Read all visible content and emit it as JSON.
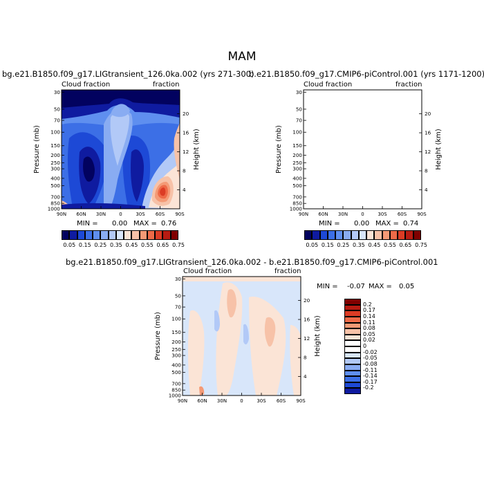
{
  "figure": {
    "title": "MAM"
  },
  "chart_data": [
    {
      "type": "heatmap",
      "name": "case",
      "title": "bg.e21.B1850.f09_g17.LIGtransient_126.0ka.002 (yrs 271-300)",
      "left_label": "Cloud fraction",
      "right_label": "fraction",
      "xlabel": "",
      "ylabel": "Pressure (mb)",
      "ylabel_right": "Height (km)",
      "x_ticks": [
        "90N",
        "60N",
        "30N",
        "0",
        "30S",
        "60S",
        "90S"
      ],
      "y_ticks": [
        "1000",
        "850",
        "700",
        "500",
        "400",
        "300",
        "250",
        "200",
        "150",
        "100",
        "70",
        "50",
        "30"
      ],
      "y_ticks_right": [
        "4",
        "8",
        "12",
        "16",
        "20"
      ],
      "min_label": "MIN =",
      "min_value": "0.00",
      "max_label": "MAX =",
      "max_value": "0.76",
      "colorbar_labels": [
        "0.05",
        "0.15",
        "0.25",
        "0.35",
        "0.45",
        "0.55",
        "0.65",
        "0.75"
      ],
      "colorbar_colors": [
        "#02025f",
        "#0f1ba0",
        "#1d49d6",
        "#3c6fe6",
        "#5f8fef",
        "#89acf2",
        "#b2c9f7",
        "#d8e6fa",
        "#fbe4d6",
        "#f7c2a8",
        "#f49a76",
        "#ee6a48",
        "#dc3c25",
        "#b71b12",
        "#800000"
      ]
    },
    {
      "type": "heatmap",
      "name": "control",
      "title": "b.e21.B1850.f09_g17.CMIP6-piControl.001 (yrs 1171-1200)",
      "left_label": "Cloud fraction",
      "right_label": "fraction",
      "xlabel": "",
      "ylabel": "Pressure (mb)",
      "ylabel_right": "Height (km)",
      "x_ticks": [
        "90N",
        "60N",
        "30N",
        "0",
        "30S",
        "60S",
        "90S"
      ],
      "y_ticks": [
        "1000",
        "850",
        "700",
        "500",
        "400",
        "300",
        "250",
        "200",
        "150",
        "100",
        "70",
        "50",
        "30"
      ],
      "y_ticks_right": [
        "4",
        "8",
        "12",
        "16",
        "20"
      ],
      "min_label": "MIN =",
      "min_value": "0.00",
      "max_label": "MAX =",
      "max_value": "0.74",
      "colorbar_labels": [
        "0.05",
        "0.15",
        "0.25",
        "0.35",
        "0.45",
        "0.55",
        "0.65",
        "0.75"
      ],
      "colorbar_colors": [
        "#02025f",
        "#0f1ba0",
        "#1d49d6",
        "#3c6fe6",
        "#5f8fef",
        "#89acf2",
        "#b2c9f7",
        "#d8e6fa",
        "#fbe4d6",
        "#f7c2a8",
        "#f49a76",
        "#ee6a48",
        "#dc3c25",
        "#b71b12",
        "#800000"
      ]
    },
    {
      "type": "heatmap",
      "name": "difference",
      "title": "bg.e21.B1850.f09_g17.LIGtransient_126.0ka.002 - b.e21.B1850.f09_g17.CMIP6-piControl.001",
      "left_label": "Cloud fraction",
      "right_label": "fraction",
      "xlabel": "",
      "ylabel": "Pressure (mb)",
      "ylabel_right": "Height (km)",
      "x_ticks": [
        "90N",
        "60N",
        "30N",
        "0",
        "30S",
        "60S",
        "90S"
      ],
      "y_ticks": [
        "1000",
        "850",
        "700",
        "500",
        "400",
        "300",
        "250",
        "200",
        "150",
        "100",
        "70",
        "50",
        "30"
      ],
      "y_ticks_right": [
        "4",
        "8",
        "12",
        "16",
        "20"
      ],
      "min_label": "MIN =",
      "min_value": "-0.07",
      "max_label": "MAX =",
      "max_value": "0.05",
      "colorbar_labels": [
        "0.2",
        "0.17",
        "0.14",
        "0.11",
        "0.08",
        "0.05",
        "0.02",
        "0",
        "-0.02",
        "-0.05",
        "-0.08",
        "-0.11",
        "-0.14",
        "-0.17",
        "-0.2"
      ],
      "colorbar_colors": [
        "#800000",
        "#b71b12",
        "#dc3c25",
        "#ee6a48",
        "#f49a76",
        "#f7c2a8",
        "#fbe4d6",
        "#ffffff",
        "#ffffff",
        "#d8e6fa",
        "#b2c9f7",
        "#89acf2",
        "#5f8fef",
        "#3c6fe6",
        "#1d49d6",
        "#0f1ba0"
      ]
    }
  ]
}
